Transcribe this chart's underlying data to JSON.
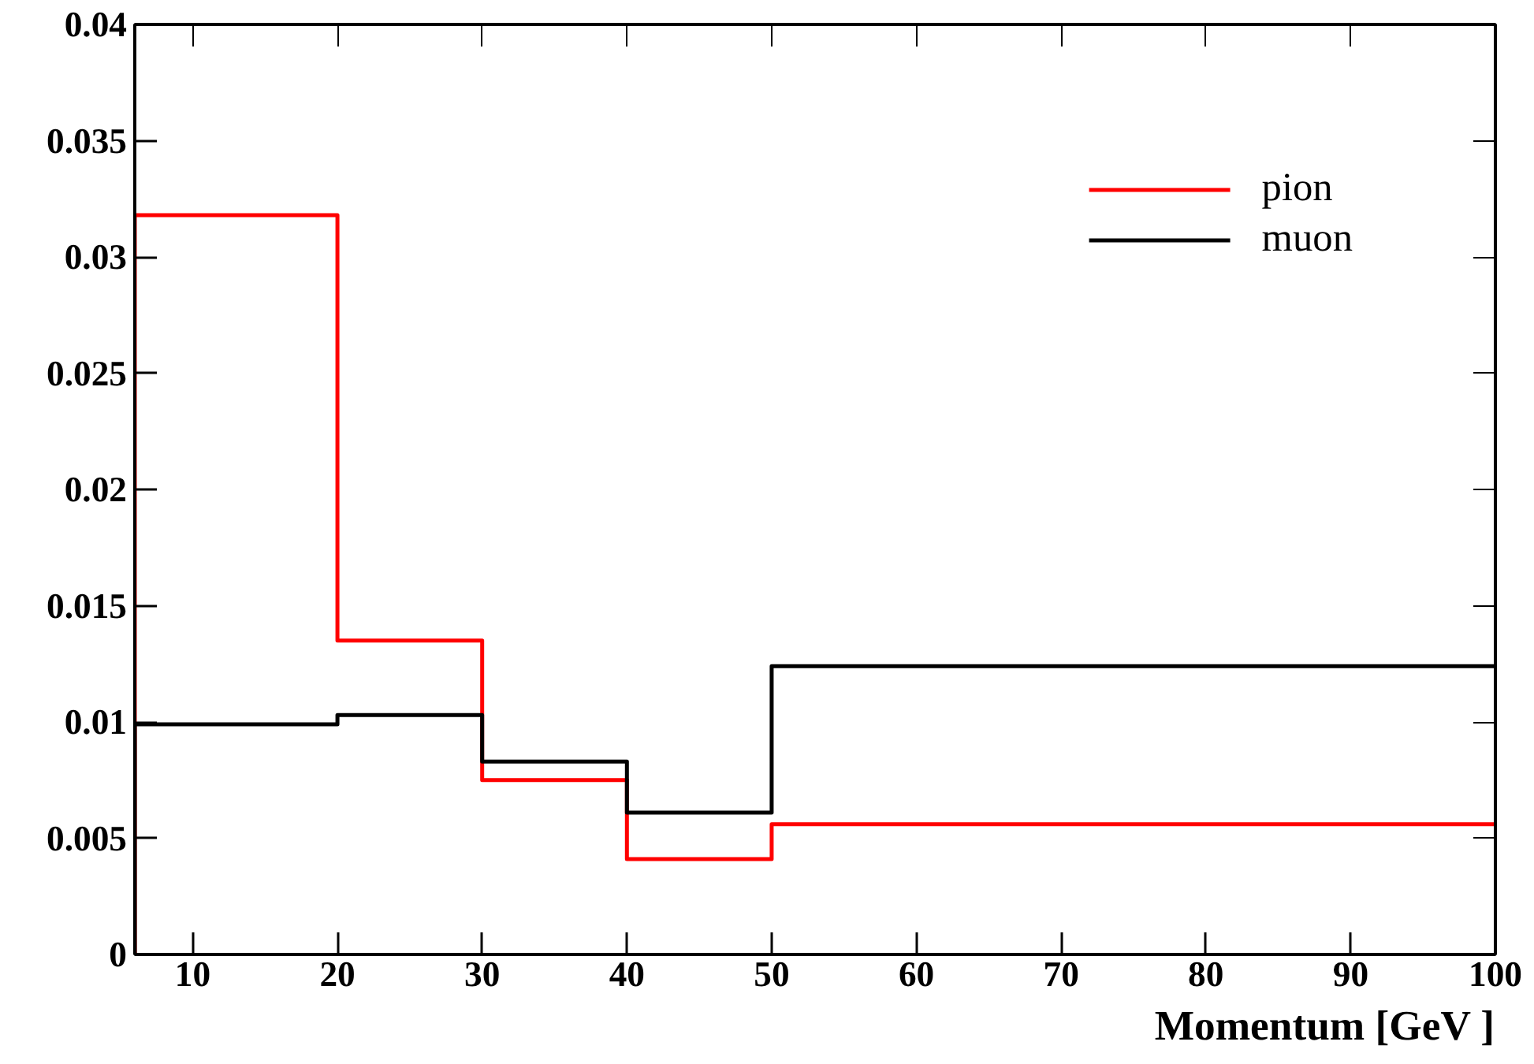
{
  "chart_data": {
    "type": "histogram",
    "xlabel": "Momentum [GeV ]",
    "bins": [
      6,
      20,
      30,
      40,
      50,
      100
    ],
    "series": [
      {
        "name": "pion",
        "color": "#ff0000",
        "values": [
          0.0318,
          0.0135,
          0.0075,
          0.0041,
          0.0056
        ]
      },
      {
        "name": "muon",
        "color": "#000000",
        "values": [
          0.0099,
          0.0103,
          0.0083,
          0.0061,
          0.0124
        ]
      }
    ],
    "xlim": [
      6,
      100
    ],
    "ylim": [
      0,
      0.04
    ],
    "xticks": [
      10,
      20,
      30,
      40,
      50,
      60,
      70,
      80,
      90,
      100
    ],
    "yticks": [
      0,
      0.005,
      0.01,
      0.015,
      0.02,
      0.025,
      0.03,
      0.035,
      0.04
    ],
    "grid": false,
    "legend": "top right"
  }
}
